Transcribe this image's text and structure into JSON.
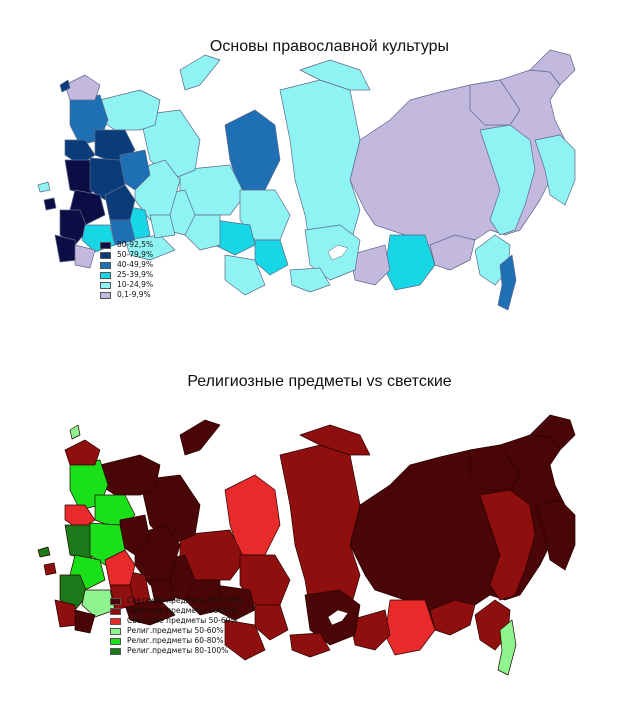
{
  "maps": {
    "top": {
      "title": "Основы православной культуры",
      "legend": [
        {
          "label": "80-92,5%",
          "color": "#0d0d45"
        },
        {
          "label": "50-79,9%",
          "color": "#0b3c7a"
        },
        {
          "label": "40-49,9%",
          "color": "#1f6fb4"
        },
        {
          "label": "25-39,9%",
          "color": "#17d6e6"
        },
        {
          "label": "10-24,9%",
          "color": "#8ff3f3"
        },
        {
          "label": "0,1-9,9%",
          "color": "#c3b8de"
        }
      ]
    },
    "bottom": {
      "title": "Религиозные предметы vs светские",
      "legend": [
        {
          "label": "Светские предметы 80-100%",
          "color": "#4a0606"
        },
        {
          "label": "Светские предметы 60-80%",
          "color": "#8f0f0f"
        },
        {
          "label": "Светские предметы 50-60%",
          "color": "#e82a2a"
        },
        {
          "label": "Религ.предметы 50-60%",
          "color": "#8ef58e"
        },
        {
          "label": "Религ.предметы 60-80%",
          "color": "#19e019"
        },
        {
          "label": "Религ.предметы 80-100%",
          "color": "#1a7a1a"
        }
      ]
    }
  }
}
